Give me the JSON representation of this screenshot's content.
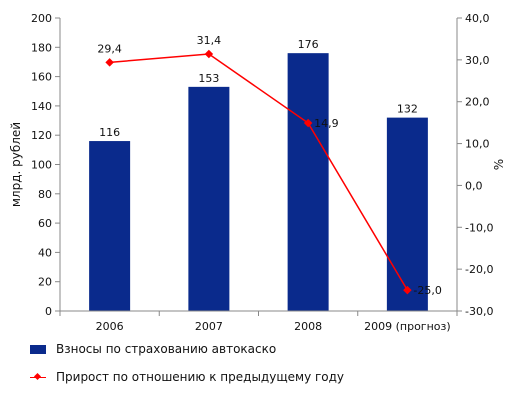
{
  "chart_data": {
    "type": "bar",
    "categories": [
      "2006",
      "2007",
      "2008",
      "2009 (прогноз)"
    ],
    "series": [
      {
        "name": "Взносы по страхованию автокаско",
        "type": "bar",
        "axis": "left",
        "values": [
          116,
          153,
          176,
          132
        ],
        "labels": [
          "116",
          "153",
          "176",
          "132"
        ],
        "color": "#0a2a8c"
      },
      {
        "name": "Прирост по отношению к предыдущему году",
        "type": "line",
        "axis": "right",
        "values": [
          29.4,
          31.4,
          14.9,
          -25.0
        ],
        "labels": [
          "29,4",
          "31,4",
          "14,9",
          "-25,0"
        ],
        "color": "#ff0000"
      }
    ],
    "ylabel": "млрд. рублей",
    "ylabel_right": "%",
    "ylim": [
      0,
      200
    ],
    "ylim_right": [
      -30,
      40
    ],
    "yticks": [
      "0",
      "20",
      "40",
      "60",
      "80",
      "100",
      "120",
      "140",
      "160",
      "180",
      "200"
    ],
    "yticks_right": [
      "-30,0",
      "-20,0",
      "-10,0",
      "0,0",
      "10,0",
      "20,0",
      "30,0",
      "40,0"
    ],
    "grid": false,
    "legend_position": "bottom-left"
  },
  "colors": {
    "plot_background": "#ffffff",
    "axis": "#888888"
  }
}
